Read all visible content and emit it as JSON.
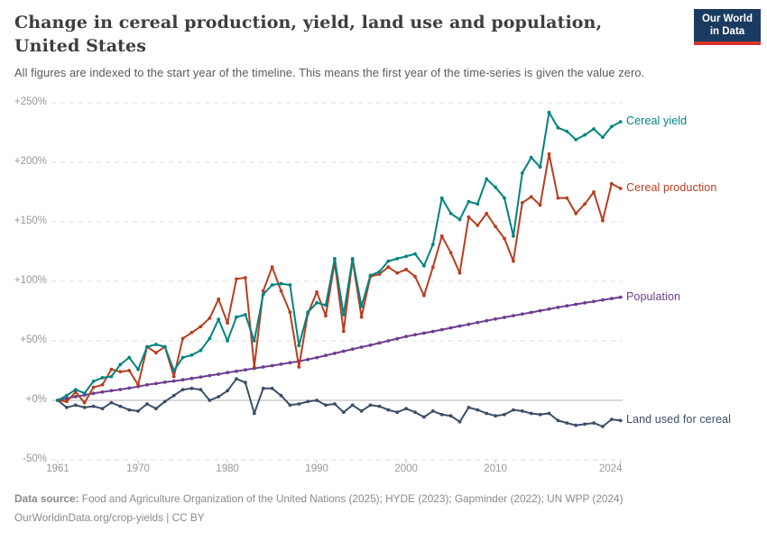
{
  "header": {
    "title": "Change in cereal production, yield, land use and population, United States",
    "subtitle": "All figures are indexed to the start year of the timeline. This means the first year of the time-series is given the value zero."
  },
  "logo": {
    "line1": "Our World",
    "line2": "in Data",
    "bg_color": "#1b3a5f",
    "accent_color": "#d5352b"
  },
  "footer": {
    "source_label": "Data source:",
    "source_text": " Food and Agriculture Organization of the United Nations (2025); HYDE (2023); Gapminder (2022); UN WPP (2024)",
    "license": "OurWorldinData.org/crop-yields | CC BY"
  },
  "chart_data": {
    "type": "line",
    "title": "Change in cereal production, yield, land use and population, United States",
    "xlabel": "",
    "ylabel": "",
    "xlim": [
      1961,
      2024
    ],
    "ylim": [
      -50,
      250
    ],
    "grid": "horizontal-dashed",
    "legend_position": "right-end-labels",
    "colors": {
      "grid": "#dedede",
      "zero_line": "#b1b1b1",
      "tick_text": "#989898"
    },
    "y_ticks": [
      {
        "value": 250,
        "label": "+250%"
      },
      {
        "value": 200,
        "label": "+200%"
      },
      {
        "value": 150,
        "label": "+150%"
      },
      {
        "value": 100,
        "label": "+100%"
      },
      {
        "value": 50,
        "label": "+50%"
      },
      {
        "value": 0,
        "label": "+0%"
      },
      {
        "value": -50,
        "label": "-50%"
      }
    ],
    "x_ticks": [
      {
        "year": 1961,
        "label": "1961"
      },
      {
        "year": 1970,
        "label": "1970"
      },
      {
        "year": 1980,
        "label": "1980"
      },
      {
        "year": 1990,
        "label": "1990"
      },
      {
        "year": 2000,
        "label": "2000"
      },
      {
        "year": 2010,
        "label": "2010"
      },
      {
        "year": 2024,
        "label": "2024"
      }
    ],
    "x": [
      1961,
      1962,
      1963,
      1964,
      1965,
      1966,
      1967,
      1968,
      1969,
      1970,
      1971,
      1972,
      1973,
      1974,
      1975,
      1976,
      1977,
      1978,
      1979,
      1980,
      1981,
      1982,
      1983,
      1984,
      1985,
      1986,
      1987,
      1988,
      1989,
      1990,
      1991,
      1992,
      1993,
      1994,
      1995,
      1996,
      1997,
      1998,
      1999,
      2000,
      2001,
      2002,
      2003,
      2004,
      2005,
      2006,
      2007,
      2008,
      2009,
      2010,
      2011,
      2012,
      2013,
      2014,
      2015,
      2016,
      2017,
      2018,
      2019,
      2020,
      2021,
      2022,
      2023,
      2024
    ],
    "unit": "% change since 1961",
    "series": [
      {
        "name": "Cereal yield",
        "color": "#00847e",
        "values": [
          0,
          4,
          9,
          6,
          16,
          19,
          20,
          30,
          36,
          26,
          45,
          47,
          45,
          25,
          36,
          38,
          42,
          52,
          68,
          50,
          70,
          72,
          50,
          89,
          97,
          98,
          97,
          46,
          74,
          82,
          80,
          119,
          72,
          119,
          79,
          105,
          108,
          117,
          119,
          121,
          123,
          113,
          131,
          170,
          157,
          152,
          167,
          165,
          186,
          179,
          170,
          138,
          191,
          204,
          196,
          242,
          229,
          226,
          219,
          223,
          228,
          221,
          230,
          234
        ]
      },
      {
        "name": "Cereal production",
        "color": "#b93d20",
        "values": [
          0,
          -1,
          7,
          -2,
          11,
          13,
          26,
          24,
          25,
          13,
          45,
          40,
          45,
          20,
          52,
          57,
          62,
          69,
          85,
          65,
          102,
          103,
          28,
          92,
          112,
          92,
          74,
          28,
          73,
          91,
          71,
          116,
          58,
          118,
          70,
          104,
          106,
          112,
          107,
          110,
          104,
          88,
          112,
          138,
          124,
          107,
          154,
          147,
          157,
          146,
          136,
          117,
          166,
          171,
          164,
          207,
          170,
          170,
          157,
          165,
          175,
          151,
          182,
          178
        ]
      },
      {
        "name": "Population",
        "color": "#6d3e91",
        "values": [
          0,
          1.6,
          3.1,
          4.5,
          5.8,
          7,
          8.1,
          9.1,
          10.3,
          11.6,
          13,
          14.1,
          15.2,
          16.2,
          17.3,
          18.4,
          19.6,
          20.8,
          22,
          23.3,
          24.5,
          25.7,
          26.8,
          28,
          29.2,
          30.4,
          31.6,
          32.9,
          34.3,
          35.9,
          37.7,
          39.5,
          41.3,
          43,
          44.7,
          46.4,
          48.2,
          50,
          51.8,
          53.6,
          55.1,
          56.5,
          57.9,
          59.4,
          60.9,
          62.4,
          63.9,
          65.4,
          66.9,
          68.3,
          69.7,
          71.1,
          72.5,
          73.9,
          75.3,
          76.7,
          78.1,
          79.4,
          80.7,
          81.9,
          83.1,
          84.3,
          85.5,
          86.7
        ]
      },
      {
        "name": "Land used for cereal",
        "color": "#3c4e66",
        "values": [
          0,
          -6,
          -4,
          -6,
          -5,
          -7,
          -2,
          -5,
          -8,
          -9,
          -3,
          -7,
          -1,
          4,
          9,
          10,
          9,
          0,
          3,
          8,
          18,
          15,
          -11,
          10,
          10,
          4,
          -4,
          -3,
          -1,
          0,
          -4,
          -3,
          -10,
          -4,
          -9,
          -4,
          -5,
          -8,
          -10,
          -7,
          -10,
          -14,
          -9,
          -12,
          -13,
          -18,
          -6,
          -8,
          -11,
          -13,
          -12,
          -8,
          -9,
          -11,
          -12,
          -11,
          -17,
          -19,
          -21,
          -20,
          -19,
          -22,
          -16,
          -17
        ]
      }
    ]
  }
}
